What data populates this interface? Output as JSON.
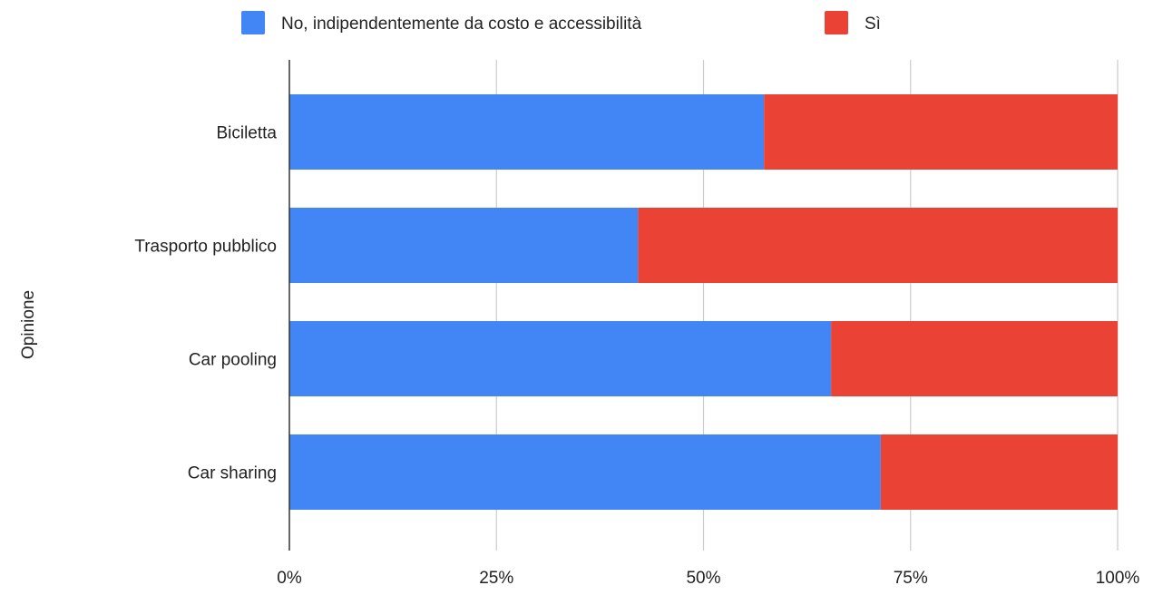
{
  "chart_data": {
    "type": "bar",
    "orientation": "horizontal",
    "stacked": true,
    "normalized": true,
    "title": "",
    "xlabel": "",
    "ylabel": "Opinione",
    "categories": [
      "Biciletta",
      "Trasporto pubblico",
      "Car pooling",
      "Car sharing"
    ],
    "series": [
      {
        "name": "No, indipendentemente da costo e accessibilità",
        "color": "#4285f4",
        "values": [
          57.3,
          42.1,
          65.4,
          71.4
        ]
      },
      {
        "name": "Sì",
        "color": "#ea4335",
        "values": [
          42.7,
          57.9,
          34.6,
          28.6
        ]
      }
    ],
    "xlim": [
      0,
      100
    ],
    "x_ticks": [
      "0%",
      "25%",
      "50%",
      "75%",
      "100%"
    ],
    "grid": true,
    "legend_position": "top"
  }
}
